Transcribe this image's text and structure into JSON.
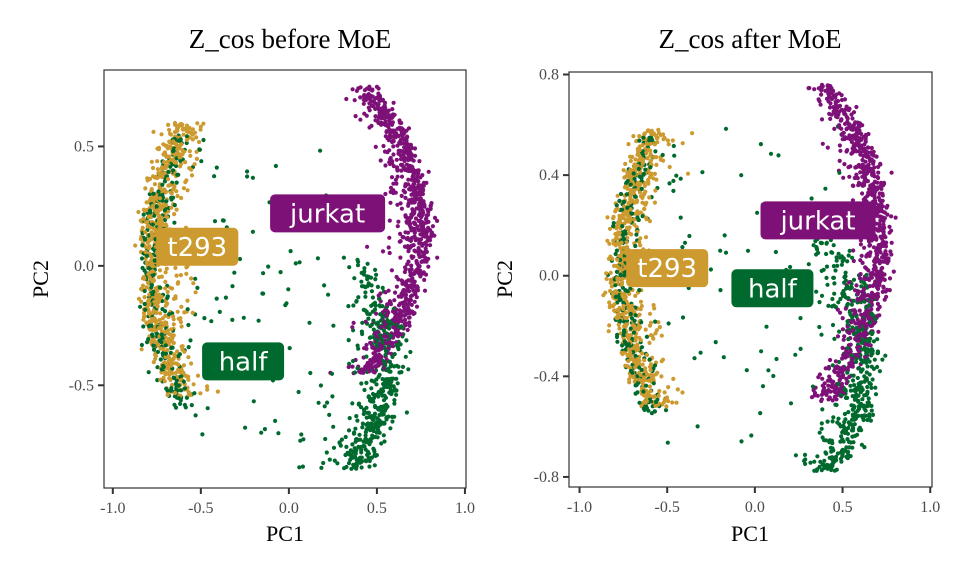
{
  "chart_data": [
    {
      "type": "scatter",
      "title": "Z_cos before MoE",
      "xlabel": "PC1",
      "ylabel": "PC2",
      "xlim": [
        -1.05,
        1.006
      ],
      "ylim": [
        -0.93,
        0.82
      ],
      "xticks": [
        -1.0,
        -0.5,
        0.0,
        0.5,
        1.0
      ],
      "xtick_labels": [
        "-1.0",
        "-0.5",
        "0.0",
        "0.5",
        "1.0"
      ],
      "yticks": [
        -0.5,
        0.0,
        0.5
      ],
      "ytick_labels": [
        "-0.5",
        "0.0",
        "0.5"
      ],
      "grid": false,
      "legend": "none",
      "series": [
        {
          "name": "t293",
          "color": "#CC9A2E",
          "n": 700,
          "shape": "arc",
          "center": [
            -0.82,
            0.03
          ],
          "y_range": [
            -0.55,
            0.6
          ],
          "x_spread": 0.13,
          "curvature": 0.18
        },
        {
          "name": "half",
          "color": "#006A2E",
          "n": 800,
          "shape": "composite",
          "components": [
            {
              "share": 0.35,
              "shape": "arc",
              "center": [
                -0.82,
                0.0
              ],
              "y_range": [
                -0.6,
                0.55
              ],
              "x_spread": 0.1,
              "curvature": 0.18
            },
            {
              "share": 0.55,
              "shape": "arc",
              "center": [
                0.62,
                -0.45
              ],
              "y_range": [
                -0.85,
                0.05
              ],
              "x_spread": 0.16,
              "curvature": 0.22,
              "dense_bottom": true
            },
            {
              "share": 0.1,
              "shape": "scatter",
              "x_range": [
                -0.6,
                0.4
              ],
              "y_range": [
                -0.8,
                0.5
              ]
            }
          ]
        },
        {
          "name": "jurkat",
          "color": "#7D1178",
          "n": 850,
          "shape": "arc",
          "center": [
            0.78,
            0.2
          ],
          "y_range": [
            -0.45,
            0.75
          ],
          "x_spread": 0.11,
          "curvature": 0.3
        }
      ],
      "annotations": [
        {
          "text": "t293",
          "x": -0.52,
          "y": 0.08,
          "fill": "#CC9A2E"
        },
        {
          "text": "half",
          "x": -0.26,
          "y": -0.4,
          "fill": "#006A2E"
        },
        {
          "text": "jurkat",
          "x": 0.22,
          "y": 0.22,
          "fill": "#7D1178"
        }
      ]
    },
    {
      "type": "scatter",
      "title": "Z_cos after MoE",
      "xlabel": "PC1",
      "ylabel": "PC2",
      "xlim": [
        -1.06,
        1.01
      ],
      "ylim": [
        -0.84,
        0.81
      ],
      "xticks": [
        -1.0,
        -0.5,
        0.0,
        0.5,
        1.0
      ],
      "xtick_labels": [
        "-1.0",
        "-0.5",
        "0.0",
        "0.5",
        "1.0"
      ],
      "yticks": [
        -0.8,
        -0.4,
        0.0,
        0.4,
        0.8
      ],
      "ytick_labels": [
        "-0.8",
        "-0.4",
        "0.0",
        "0.4",
        "0.8"
      ],
      "grid": false,
      "legend": "none",
      "series": [
        {
          "name": "t293",
          "color": "#CC9A2E",
          "n": 700,
          "shape": "arc",
          "center": [
            -0.8,
            0.03
          ],
          "y_range": [
            -0.52,
            0.58
          ],
          "x_spread": 0.13,
          "curvature": 0.18
        },
        {
          "name": "half",
          "color": "#006A2E",
          "n": 800,
          "shape": "composite",
          "components": [
            {
              "share": 0.35,
              "shape": "arc",
              "center": [
                -0.8,
                0.0
              ],
              "y_range": [
                -0.55,
                0.55
              ],
              "x_spread": 0.1,
              "curvature": 0.18
            },
            {
              "share": 0.55,
              "shape": "arc",
              "center": [
                0.68,
                -0.4
              ],
              "y_range": [
                -0.78,
                0.15
              ],
              "x_spread": 0.14,
              "curvature": 0.22,
              "dense_bottom": true
            },
            {
              "share": 0.1,
              "shape": "scatter",
              "x_range": [
                -0.5,
                0.5
              ],
              "y_range": [
                -0.75,
                0.6
              ]
            }
          ]
        },
        {
          "name": "jurkat",
          "color": "#7D1178",
          "n": 850,
          "shape": "arc",
          "center": [
            0.75,
            0.2
          ],
          "y_range": [
            -0.5,
            0.76
          ],
          "x_spread": 0.12,
          "curvature": 0.3
        }
      ],
      "annotations": [
        {
          "text": "t293",
          "x": -0.5,
          "y": 0.03,
          "fill": "#CC9A2E"
        },
        {
          "text": "half",
          "x": 0.1,
          "y": -0.05,
          "fill": "#006A2E"
        },
        {
          "text": "jurkat",
          "x": 0.36,
          "y": 0.22,
          "fill": "#7D1178"
        }
      ]
    }
  ]
}
